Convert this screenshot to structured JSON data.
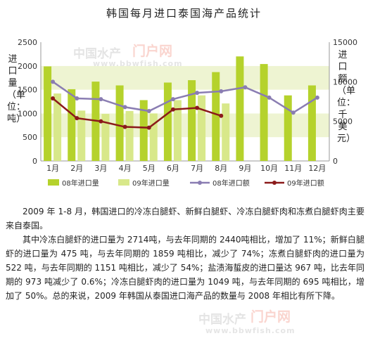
{
  "chart_data": {
    "type": "bar+line",
    "title": "韩国每月进口泰国海产品统计",
    "ylabel_left": "进口量（单位：吨）",
    "ylabel_right": "进口额（单位：千美元）",
    "categories": [
      "1月",
      "2月",
      "3月",
      "4月",
      "5月",
      "6月",
      "7月",
      "8月",
      "9月",
      "10月",
      "11月",
      "12月"
    ],
    "ylim_left": [
      0,
      2500
    ],
    "yticks_left": [
      "0",
      "500",
      "1000",
      "1500",
      "2000",
      "2500"
    ],
    "ylim_right": [
      0,
      15000
    ],
    "yticks_right": [
      "0",
      "5000",
      "10000",
      "15000"
    ],
    "bar_series": [
      {
        "name": "08年进口量",
        "color": "#b5d22c",
        "values": [
          1990,
          1510,
          1670,
          1590,
          1280,
          1650,
          1700,
          1870,
          2200,
          2040,
          1380,
          1590
        ]
      },
      {
        "name": "09年进口量",
        "color": "#d8e88a",
        "values": [
          1420,
          1060,
          990,
          1050,
          1000,
          1280,
          1380,
          1210,
          null,
          null,
          null,
          null
        ]
      }
    ],
    "line_series": [
      {
        "name": "08年进口额",
        "color": "#8a7db2",
        "values": [
          10000,
          7900,
          7800,
          6800,
          6300,
          7800,
          8600,
          8800,
          9300,
          8000,
          6100,
          8000
        ]
      },
      {
        "name": "09年进口额",
        "color": "#8b1a1a",
        "values": [
          7900,
          5400,
          5000,
          4300,
          4200,
          6500,
          6700,
          5700,
          null,
          null,
          null,
          null
        ]
      }
    ],
    "grid": "horizontal bands",
    "legend_position": "bottom"
  },
  "watermark": {
    "brand_a": "中国水产",
    "brand_b": "门户网",
    "url": "www.bbwfish.com"
  },
  "article": {
    "p1": "2009 年 1-8 月，韩国进口的冷冻白腿虾、新鲜白腿虾、冷冻白腿虾肉和冻煮白腿虾肉主要来自泰国。",
    "p2": "其中冷冻白腿虾的进口量为 2714吨，与去年同期的 2440吨相比，增加了 11%；新鲜白腿虾的进口量为 475 吨，与去年同期的 1859 吨相比，减少了 74%；冻煮白腿虾肉的进口量为 522 吨，与去年同期的 1151 吨相比，减少了 54%；盐渍海蜇皮的进口量达 967 吨，比去年同期的 973 吨减少了 0.6%；冷冻白腿虾肉的进口量为 1049 吨，与去年同期的 695 吨相比，增加了 50%。总的来说，2009 年韩国从泰国进口海产品的数量与 2008 年相比有所下降。"
  }
}
